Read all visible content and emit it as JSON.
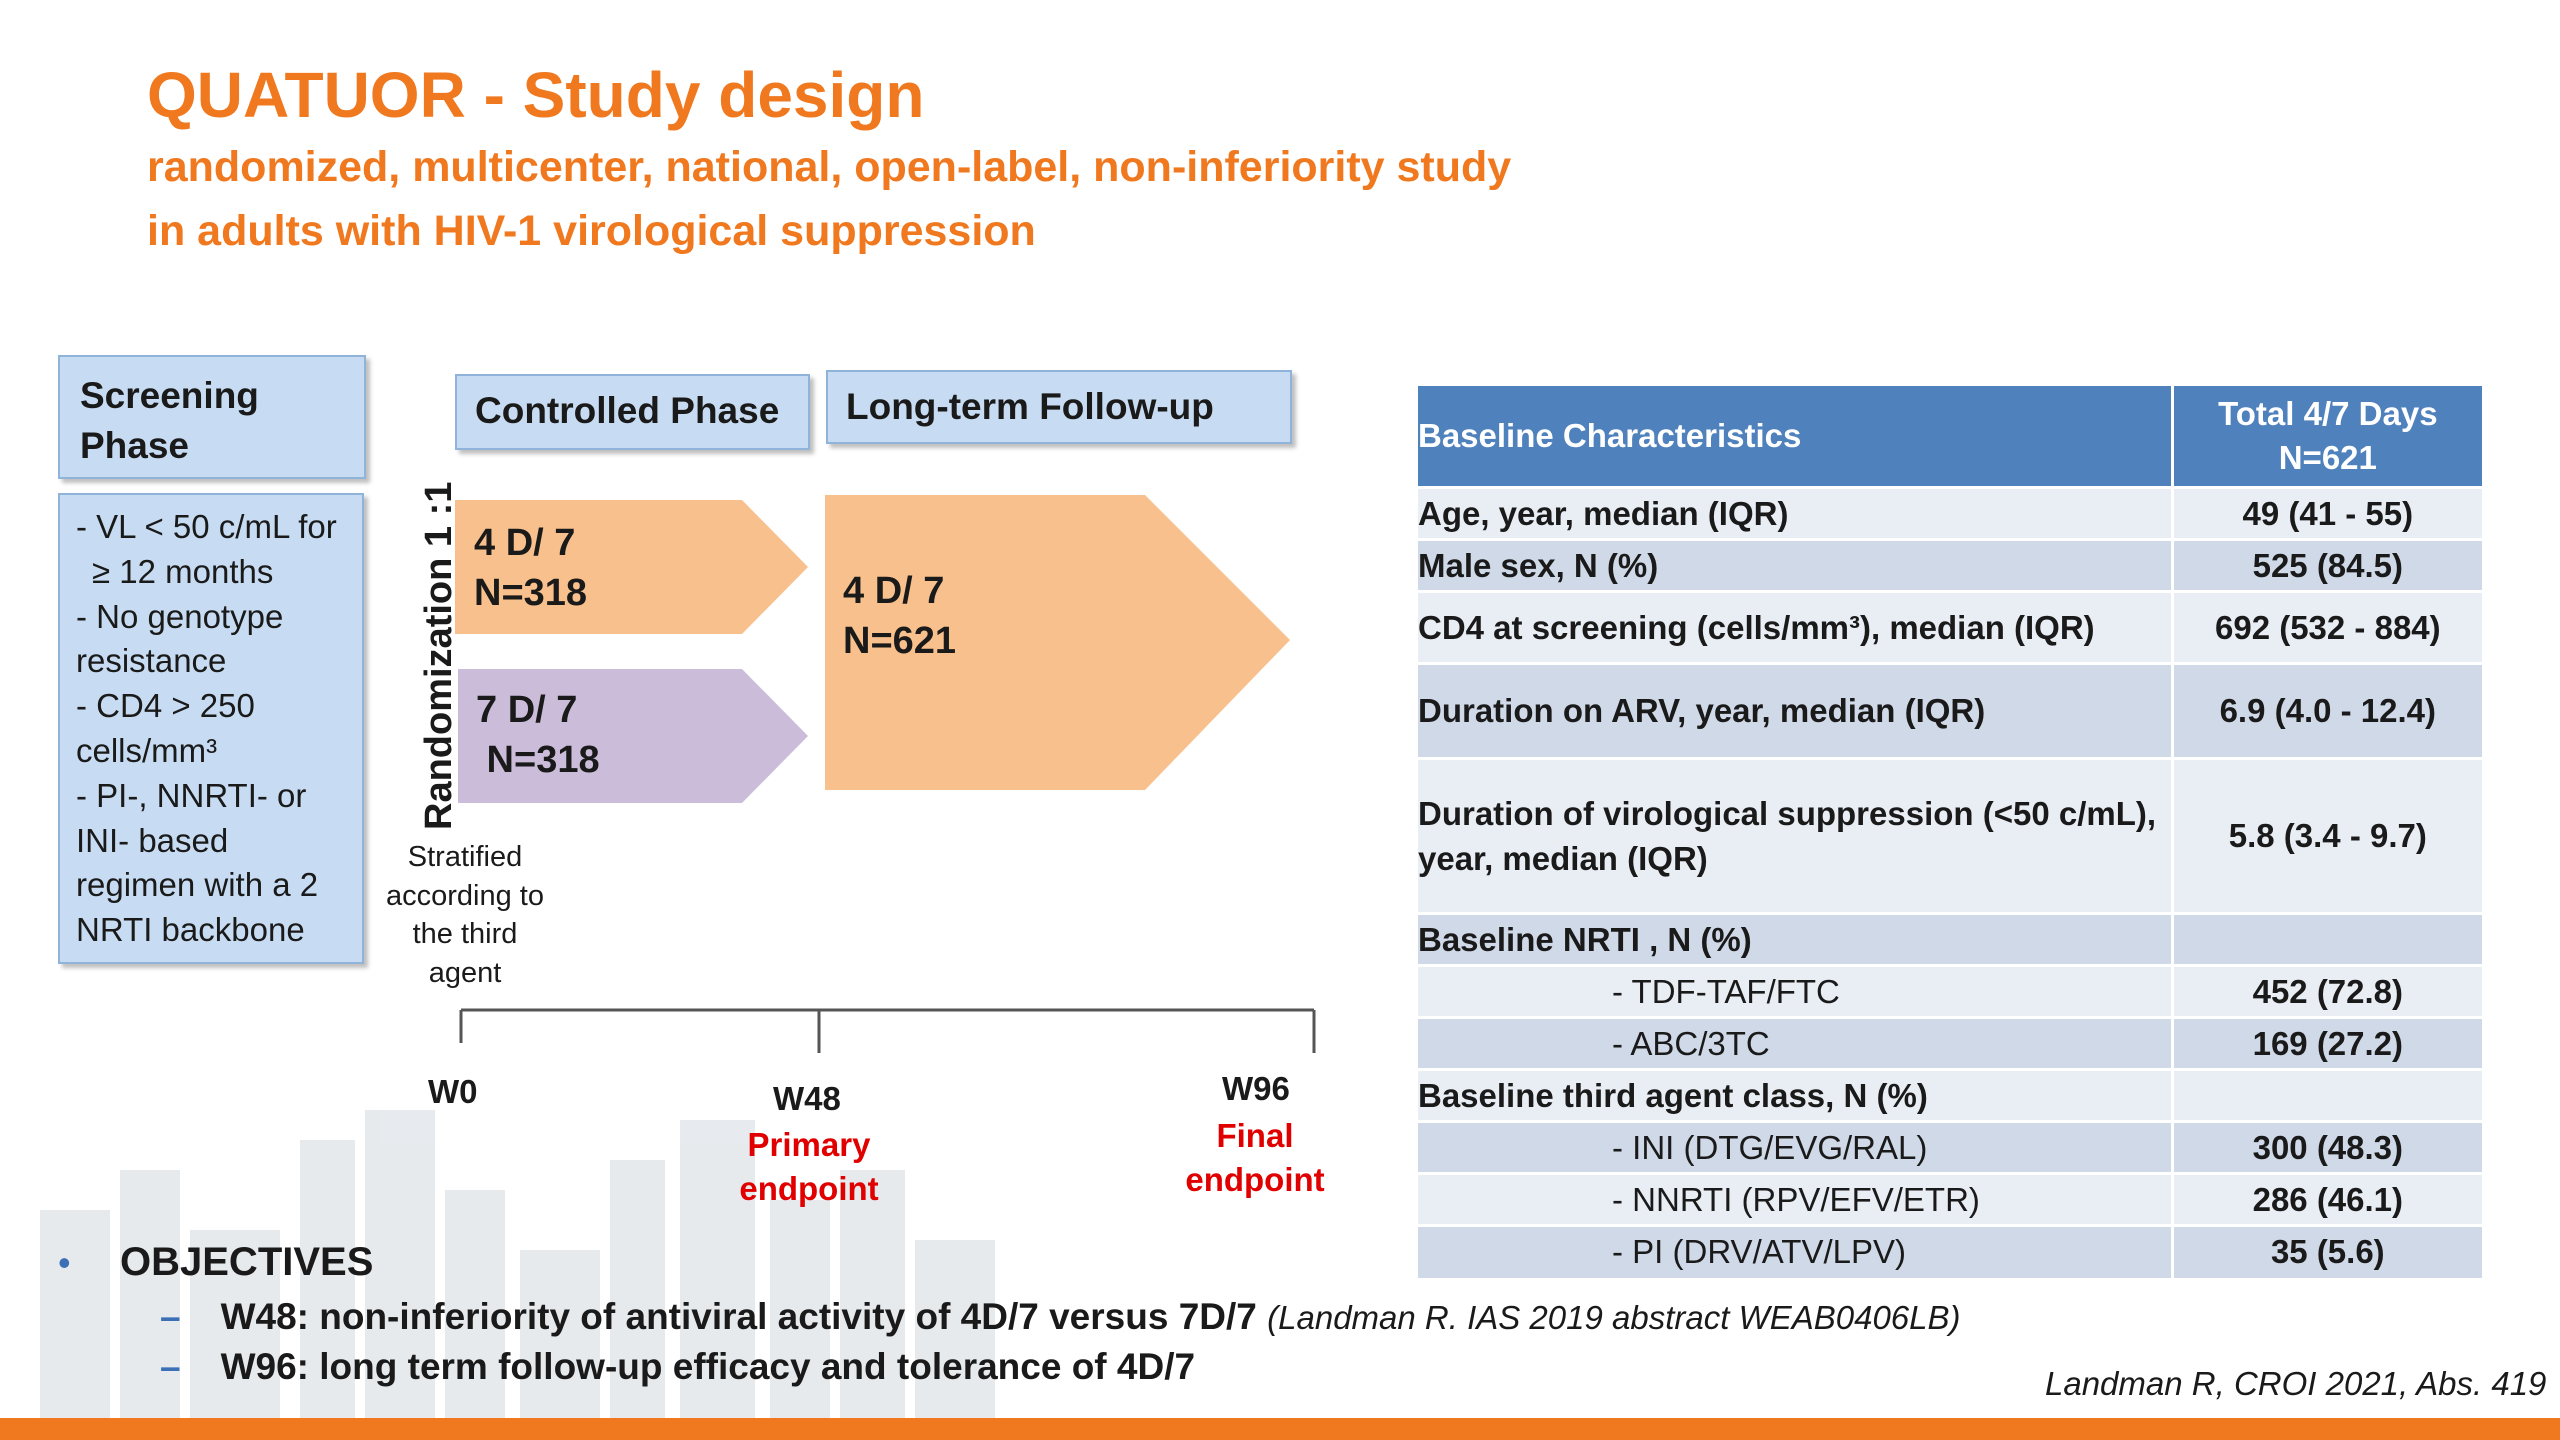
{
  "title": "QUATUOR - Study design",
  "subtitle_lines": [
    "randomized, multicenter, national, open-label, non-inferiority study",
    "in adults  with HIV-1 virological suppression"
  ],
  "screening": {
    "header_lines": [
      "Screening",
      "Phase"
    ],
    "criteria_lines": [
      "- VL < 50 c/mL for",
      "  ≥ 12 months",
      "- No genotype",
      "resistance",
      "- CD4 > 250",
      "cells/mm³",
      "- PI-, NNRTI- or",
      "INI- based",
      "regimen with a 2",
      "NRTI backbone"
    ]
  },
  "phases": {
    "controlled": "Controlled Phase",
    "long_term": "Long-term Follow-up"
  },
  "randomization": "Randomization 1 :1",
  "stratified_lines": [
    "Stratified",
    "according to",
    "the third",
    "agent"
  ],
  "arms": [
    {
      "line1": "4 D/ 7",
      "line2": "N=318",
      "color": "#f8c08c"
    },
    {
      "line1": "7 D/ 7",
      "line2": " N=318",
      "color": "#cbbcd9"
    }
  ],
  "followup_arm": {
    "line1": "4 D/ 7",
    "line2": "N=621",
    "color": "#f8c08c"
  },
  "timeline": {
    "points": [
      {
        "label": "W0"
      },
      {
        "label": "W48",
        "endpoint_lines": [
          "Primary",
          "endpoint"
        ]
      },
      {
        "label": "W96",
        "endpoint_lines": [
          "Final",
          "endpoint"
        ]
      }
    ],
    "endpoint_color": "#e00000"
  },
  "table": {
    "header": {
      "label": "Baseline Characteristics",
      "total_lines": [
        "Total 4/7 Days",
        "N=621"
      ]
    },
    "rows": [
      {
        "label": "Age, year, median (IQR)",
        "value": "49 (41 - 55)"
      },
      {
        "label": "Male sex, N (%)",
        "value": "525 (84.5)"
      },
      {
        "label": "CD4 at screening (cells/mm³), median (IQR)",
        "value": "692 (532 - 884)"
      },
      {
        "label": "Duration on ARV, year,  median (IQR)",
        "value": "6.9 (4.0 - 12.4)"
      },
      {
        "label": "Duration of  virological suppression (<50 c/mL),",
        "label2": "year, median (IQR)",
        "value": "5.8 (3.4 - 9.7)"
      },
      {
        "label": "Baseline NRTI , N (%)",
        "value": ""
      },
      {
        "label": "- TDF-TAF/FTC",
        "value": "452 (72.8)",
        "sub": true
      },
      {
        "label": "- ABC/3TC",
        "value": "169 (27.2)",
        "sub": true
      },
      {
        "label": "Baseline third agent class, N (%)",
        "value": ""
      },
      {
        "label": "- INI (DTG/EVG/RAL)",
        "value": "300 (48.3)",
        "sub": true
      },
      {
        "label": "- NNRTI (RPV/EFV/ETR)",
        "value": "286 (46.1)",
        "sub": true
      },
      {
        "label": "- PI (DRV/ATV/LPV)",
        "value": "35 (5.6)",
        "sub": true
      }
    ],
    "header_color": "#4f81bd"
  },
  "objectives": {
    "bullet": "•",
    "title": "OBJECTIVES",
    "dash": "–",
    "items": [
      {
        "text": "W48: non-inferiority of antiviral activity of 4D/7 versus 7D/7 ",
        "ref": "(Landman R. IAS 2019  abstract WEAB0406LB)"
      },
      {
        "text": "W96: long term follow-up efficacy and tolerance of 4D/7",
        "ref": ""
      }
    ]
  },
  "citation": "Landman R, CROI 2021, Abs. 419",
  "accent_color": "#f0781e"
}
